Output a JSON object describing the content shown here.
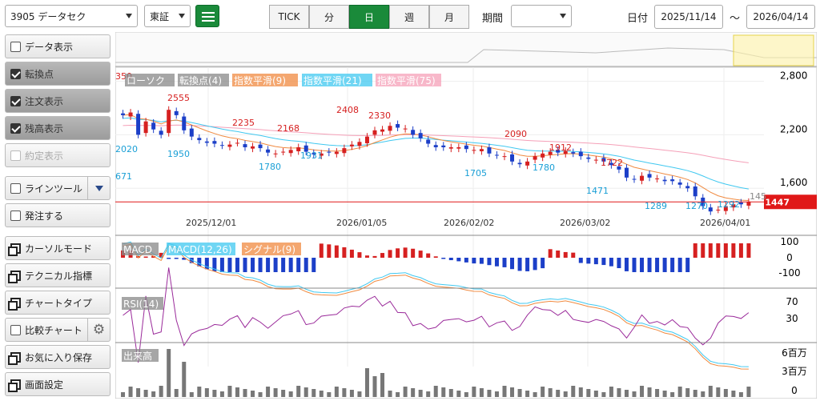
{
  "toolbar": {
    "symbol": "3905 データセク",
    "market": "東証",
    "intervals": [
      "TICK",
      "分",
      "日",
      "週",
      "月"
    ],
    "active_interval": "日",
    "period_label": "期間",
    "period_value": "",
    "date_label": "日付",
    "date_from": "2025/11/14",
    "date_sep": "～",
    "date_to": "2026/04/14"
  },
  "sidebar": [
    {
      "label": "データ表示",
      "type": "check",
      "checked": false
    },
    {
      "label": "転換点",
      "type": "check",
      "checked": true
    },
    {
      "label": "注文表示",
      "type": "check",
      "checked": true
    },
    {
      "label": "残高表示",
      "type": "check",
      "checked": true
    },
    {
      "label": "約定表示",
      "type": "check",
      "checked": false,
      "disabled": true
    },
    {
      "label": "ラインツール",
      "type": "check",
      "checked": false,
      "dropdown": true
    },
    {
      "label": "発注する",
      "type": "check",
      "checked": false
    },
    {
      "label": "カーソルモード",
      "type": "window"
    },
    {
      "label": "テクニカル指標",
      "type": "window"
    },
    {
      "label": "チャートタイプ",
      "type": "window"
    },
    {
      "label": "比較チャート",
      "type": "check",
      "checked": false,
      "gear": true
    },
    {
      "label": "お気に入り保存",
      "type": "window"
    },
    {
      "label": "画面設定",
      "type": "window"
    }
  ],
  "legend": {
    "candle": "ローソク",
    "turn": "転換点(4)",
    "ema9": "指数平滑(9)",
    "ema21": "指数平滑(21)",
    "ema75": "指数平滑(75)",
    "macd": "MACD",
    "macd_line": "MACD(12,26)",
    "signal": "シグナル(9)",
    "rsi": "RSI(14)",
    "volume": "出来高"
  },
  "price_axis": [
    "2,800",
    "2,200",
    "1,600"
  ],
  "current_price": "1447",
  "truncated_label": "145",
  "top_left_cut": "350",
  "left_cut": "671",
  "macd_axis": [
    "100",
    "0",
    "-100"
  ],
  "rsi_axis": [
    "70",
    "30"
  ],
  "vol_axis": [
    "6百万",
    "3百万",
    "0"
  ],
  "x_dates": [
    "2025/12/01",
    "2026/01/05",
    "2026/02/02",
    "2026/03/02",
    "2026/04/01"
  ],
  "turn_points": [
    {
      "v": "2020",
      "c": "#1a9fd6"
    },
    {
      "v": "2555",
      "c": "#d62020"
    },
    {
      "v": "1950",
      "c": "#1a9fd6"
    },
    {
      "v": "2235",
      "c": "#d62020"
    },
    {
      "v": "1780",
      "c": "#1a9fd6"
    },
    {
      "v": "2168",
      "c": "#d62020"
    },
    {
      "v": "1931",
      "c": "#1a9fd6"
    },
    {
      "v": "2408",
      "c": "#d62020"
    },
    {
      "v": "2330",
      "c": "#d62020"
    },
    {
      "v": "1705",
      "c": "#1a9fd6"
    },
    {
      "v": "2090",
      "c": "#d62020"
    },
    {
      "v": "1780",
      "c": "#1a9fd6"
    },
    {
      "v": "1912",
      "c": "#d62020"
    },
    {
      "v": "1471",
      "c": "#1a9fd6"
    },
    {
      "v": "1722",
      "c": "#d62020"
    },
    {
      "v": "1289",
      "c": "#1a9fd6"
    },
    {
      "v": "1270",
      "c": "#1a9fd6"
    },
    {
      "v": "1292",
      "c": "#1a9fd6"
    }
  ],
  "colors": {
    "up": "#d62020",
    "down": "#1c3fc8",
    "ema9": "#f08a40",
    "ema21": "#40c8f0",
    "ema75": "#f5a0b8",
    "rsi": "#9a2a9a",
    "vol": "#777777",
    "price_tag": "#e01818"
  },
  "price_path": [
    2420,
    2450,
    2200,
    2350,
    2260,
    2200,
    2480,
    2420,
    2250,
    2180,
    2140,
    2110,
    2100,
    2080,
    2090,
    2110,
    2060,
    2070,
    2050,
    2000,
    1990,
    2010,
    2030,
    2060,
    2010,
    1980,
    1990,
    2000,
    2010,
    2050,
    2090,
    2120,
    2180,
    2250,
    2260,
    2300,
    2280,
    2270,
    2200,
    2160,
    2100,
    2060,
    2060,
    2060,
    2060,
    2040,
    2030,
    2040,
    1990,
    1970,
    1960,
    1900,
    1870,
    1900,
    1960,
    1990,
    2010,
    2000,
    2020,
    1990,
    1960,
    1930,
    1920,
    1900,
    1860,
    1810,
    1720,
    1700,
    1740,
    1720,
    1710,
    1680,
    1680,
    1640,
    1600,
    1510,
    1400,
    1340,
    1360,
    1400,
    1420,
    1420,
    1447
  ]
}
